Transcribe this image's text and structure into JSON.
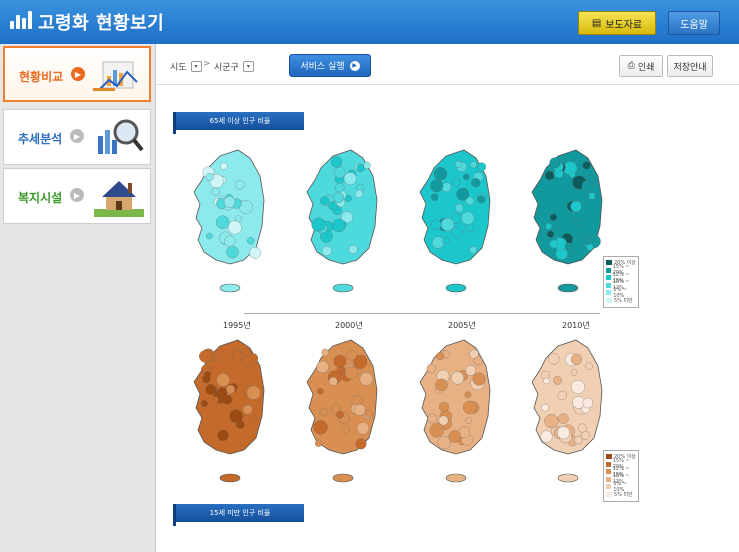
{
  "header": {
    "title": "고령화 현황보기",
    "report_button": "보도자료",
    "help_button": "도움말",
    "accent": "#1e6fc7"
  },
  "sidebar": {
    "items": [
      {
        "label": "현황비교",
        "color": "#ee6a1f",
        "active": true,
        "icon": "chart-illustration"
      },
      {
        "label": "추세분석",
        "color": "#2d6fbf",
        "active": false,
        "icon": "magnifier-chart-illustration"
      },
      {
        "label": "복지시설",
        "color": "#3a9a2a",
        "active": false,
        "icon": "house-illustration"
      }
    ]
  },
  "toolbar": {
    "sido": "시도",
    "sigungu": "시군구",
    "run_button": "서비스 실행",
    "print_button": "인쇄",
    "save_button": "저장안내"
  },
  "content": {
    "top_label": "65세 이상 인구 비율",
    "bottom_label": "15세 미만 인구 비율",
    "years": [
      "1995년",
      "2000년",
      "2005년",
      "2010년"
    ],
    "top_legend": [
      "20% 이상",
      "15% ~ 20%",
      "12% ~ 15%",
      "10% ~ 12%",
      "5% ~ 10%",
      "5% 미만"
    ],
    "bottom_legend": [
      "20% 이상",
      "15% ~ 20%",
      "12% ~ 15%",
      "10% ~ 12%",
      "5% ~ 10%",
      "5% 미만"
    ],
    "top_colors": [
      "#0d5b5b",
      "#11999e",
      "#1cc7cc",
      "#4ed9dc",
      "#8deaec",
      "#d0f7f8"
    ],
    "bottom_colors": [
      "#9c4a12",
      "#c46a2a",
      "#d98f52",
      "#e8b184",
      "#f1cfb2",
      "#faeadf"
    ]
  }
}
